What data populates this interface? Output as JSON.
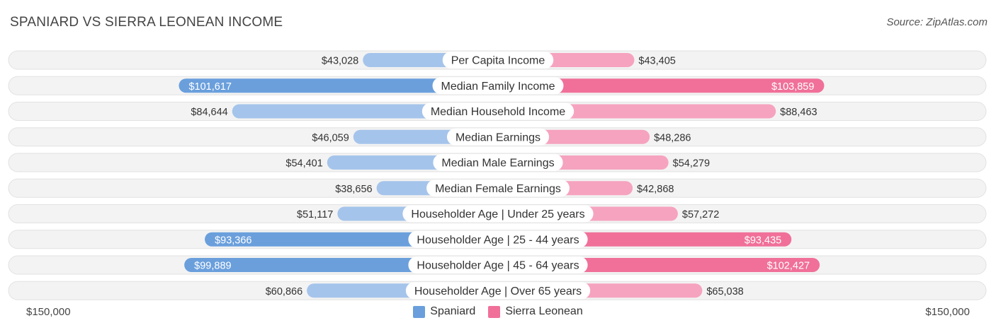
{
  "header": {
    "title": "SPANIARD VS SIERRA LEONEAN INCOME",
    "source": "Source: ZipAtlas.com"
  },
  "colors": {
    "left_strong": "#6a9fdc",
    "left_light": "#a5c4eb",
    "right_strong": "#f07099",
    "right_light": "#f6a3bf",
    "track": "#f2f2f2"
  },
  "legend": {
    "left": "Spaniard",
    "right": "Sierra Leonean"
  },
  "axis": {
    "left_label": "$150,000",
    "right_label": "$150,000"
  },
  "chart_data": {
    "type": "bar",
    "orientation": "horizontal-diverging",
    "title": "SPANIARD VS SIERRA LEONEAN INCOME",
    "xlim": [
      0,
      150000
    ],
    "categories": [
      "Per Capita Income",
      "Median Family Income",
      "Median Household Income",
      "Median Earnings",
      "Median Male Earnings",
      "Median Female Earnings",
      "Householder Age | Under 25 years",
      "Householder Age | 25 - 44 years",
      "Householder Age | 45 - 64 years",
      "Householder Age | Over 65 years"
    ],
    "series": [
      {
        "name": "Spaniard",
        "values": [
          43028,
          101617,
          84644,
          46059,
          54401,
          38656,
          51117,
          93366,
          99889,
          60866
        ],
        "labels": [
          "$43,028",
          "$101,617",
          "$84,644",
          "$46,059",
          "$54,401",
          "$38,656",
          "$51,117",
          "$93,366",
          "$99,889",
          "$60,866"
        ]
      },
      {
        "name": "Sierra Leonean",
        "values": [
          43405,
          103859,
          88463,
          48286,
          54279,
          42868,
          57272,
          93435,
          102427,
          65038
        ],
        "labels": [
          "$43,405",
          "$103,859",
          "$88,463",
          "$48,286",
          "$54,279",
          "$42,868",
          "$57,272",
          "$93,435",
          "$102,427",
          "$65,038"
        ]
      }
    ],
    "strong_rows": [
      1,
      7,
      8
    ]
  }
}
